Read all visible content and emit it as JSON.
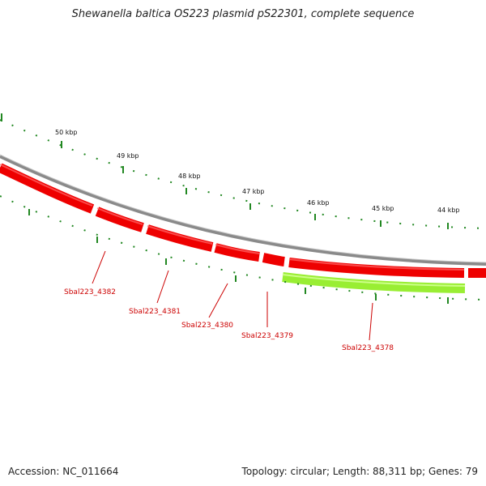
{
  "title": "Shewanella baltica OS223 plasmid pS22301, complete sequence",
  "accession_label": "Accession: NC_011664",
  "summary_label": "Topology: circular; Length: 88,311 bp; Genes: 79",
  "colors": {
    "gene_forward": "#ee0000",
    "gene_reverse": "#99ee33",
    "backbone": "#888888",
    "ticks": "#228822",
    "label": "#cc0000"
  },
  "ticks": [
    {
      "label": "50 kbp"
    },
    {
      "label": "49 kbp"
    },
    {
      "label": "48 kbp"
    },
    {
      "label": "47 kbp"
    },
    {
      "label": "46 kbp"
    },
    {
      "label": "45 kbp"
    },
    {
      "label": "44 kbp"
    }
  ],
  "genes": [
    {
      "name": "Sbal223_4382",
      "strand": "forward"
    },
    {
      "name": "Sbal223_4381",
      "strand": "forward"
    },
    {
      "name": "Sbal223_4380",
      "strand": "forward"
    },
    {
      "name": "Sbal223_4379",
      "strand": "forward"
    },
    {
      "name": "Sbal223_4378",
      "strand": "reverse"
    }
  ]
}
